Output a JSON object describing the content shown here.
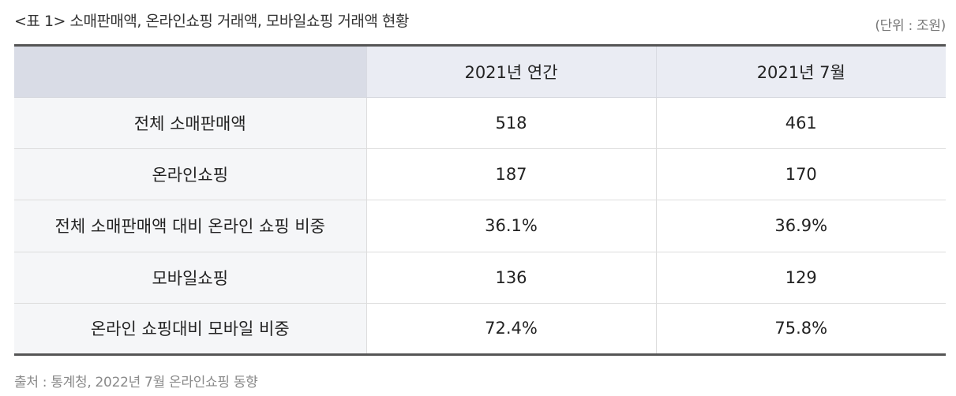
{
  "caption": "<표 1> 소매판매액, 온라인쇼핑 거래액, 모바일쇼핑 거래액 현황",
  "unit": "(단위 : 조원)",
  "table": {
    "headers": [
      "",
      "2021년 연간",
      "2021년 7월"
    ],
    "rows": [
      [
        "전체 소매판매액",
        "518",
        "461"
      ],
      [
        "온라인쇼핑",
        "187",
        "170"
      ],
      [
        "전체 소매판매액 대비 온라인 쇼핑 비중",
        "36.1%",
        "36.9%"
      ],
      [
        "모바일쇼핑",
        "136",
        "129"
      ],
      [
        "온라인 쇼핑대비 모바일 비중",
        "72.4%",
        "75.8%"
      ]
    ]
  },
  "source": "출처 : 통계청, 2022년 7월 온라인쇼핑 동향"
}
